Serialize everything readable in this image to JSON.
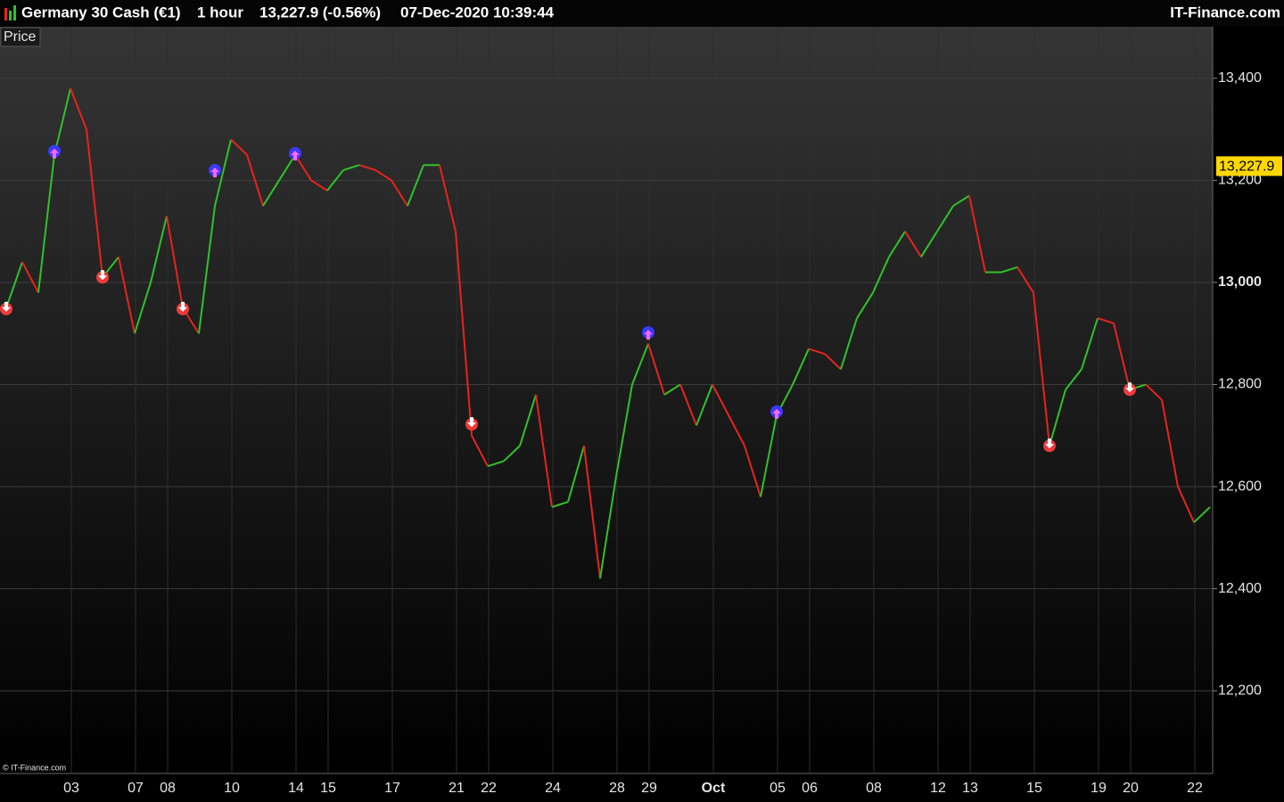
{
  "header": {
    "instrument": "Germany 30 Cash (€1)",
    "timeframe": "1 hour",
    "quote": "13,227.9 (-0.56%)",
    "timestamp": "07-Dec-2020 10:39:44",
    "brand": "IT-Finance.com"
  },
  "chart_data": {
    "type": "line",
    "panel_label": "Price",
    "copyright": "© IT-Finance.com",
    "categories": [
      null,
      null,
      null,
      null,
      "03",
      null,
      null,
      null,
      "07",
      null,
      "08",
      null,
      null,
      null,
      "10",
      null,
      null,
      null,
      "14",
      null,
      "15",
      null,
      null,
      null,
      "17",
      null,
      null,
      null,
      "21",
      null,
      "22",
      null,
      null,
      null,
      "24",
      null,
      null,
      null,
      "28",
      null,
      "29",
      null,
      null,
      null,
      "Oct",
      null,
      null,
      null,
      "05",
      null,
      "06",
      null,
      null,
      null,
      "08",
      null,
      null,
      null,
      "12",
      null,
      "13",
      null,
      null,
      null,
      "15",
      null,
      null,
      null,
      "19",
      null,
      "20",
      null,
      null,
      null,
      "22",
      null
    ],
    "values": [
      12950,
      13040,
      12980,
      13250,
      13380,
      13300,
      13010,
      13050,
      12900,
      13000,
      13130,
      12950,
      12900,
      13150,
      13280,
      13250,
      13150,
      13200,
      13250,
      13200,
      13180,
      13220,
      13230,
      13220,
      13200,
      13150,
      13230,
      13230,
      13100,
      12700,
      12640,
      12650,
      12680,
      12780,
      12560,
      12570,
      12680,
      12420,
      12620,
      12800,
      12880,
      12780,
      12800,
      12720,
      12800,
      12740,
      12680,
      12580,
      12740,
      12800,
      12870,
      12860,
      12830,
      12930,
      12980,
      13050,
      13100,
      13050,
      13100,
      13150,
      13170,
      13020,
      13020,
      13030,
      12980,
      12680,
      12790,
      12830,
      12930,
      12920,
      12790,
      12800,
      12770,
      12600,
      12530,
      12560
    ],
    "up_color": "#2fc22a",
    "down_color": "#e8231c",
    "sell_signals": [
      12948,
      null,
      null,
      null,
      null,
      null,
      13010,
      null,
      null,
      null,
      null,
      12948,
      null,
      null,
      null,
      null,
      null,
      null,
      null,
      null,
      null,
      null,
      null,
      null,
      null,
      null,
      null,
      null,
      null,
      12722,
      null,
      null,
      null,
      null,
      null,
      null,
      null,
      null,
      null,
      null,
      null,
      null,
      null,
      null,
      null,
      null,
      null,
      null,
      null,
      null,
      null,
      null,
      null,
      null,
      null,
      null,
      null,
      null,
      null,
      null,
      null,
      null,
      null,
      null,
      null,
      12680,
      null,
      null,
      null,
      null,
      12790,
      null,
      null,
      null,
      null,
      null
    ],
    "buy_signals": [
      null,
      null,
      null,
      13257,
      null,
      null,
      null,
      null,
      null,
      null,
      null,
      null,
      null,
      13220,
      null,
      null,
      null,
      null,
      13253,
      null,
      null,
      null,
      null,
      null,
      null,
      null,
      null,
      null,
      null,
      null,
      null,
      null,
      null,
      null,
      null,
      null,
      null,
      null,
      null,
      null,
      12902,
      null,
      null,
      null,
      null,
      null,
      null,
      null,
      12747,
      null,
      null,
      null,
      null,
      null,
      null,
      null,
      null,
      null,
      null,
      null,
      null,
      null,
      null,
      null,
      null,
      null,
      null,
      null,
      null,
      null,
      null,
      null,
      null,
      null,
      null,
      null
    ],
    "last": {
      "value": 13227.9,
      "label": "13,227.9"
    },
    "ylim": [
      12038,
      13501
    ],
    "yticks": [
      {
        "value": 12200,
        "label": "12,200"
      },
      {
        "value": 12400,
        "label": "12,400"
      },
      {
        "value": 12600,
        "label": "12,600"
      },
      {
        "value": 12800,
        "label": "12,800"
      },
      {
        "value": 13000,
        "label": "13,000"
      },
      {
        "value": 13200,
        "label": "13,200"
      },
      {
        "value": 13400,
        "label": "13,400"
      }
    ],
    "grid": true
  }
}
